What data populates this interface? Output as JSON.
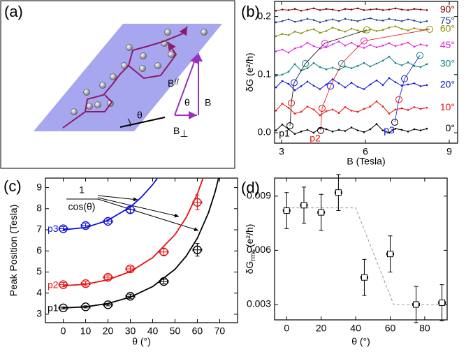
{
  "diagram": {
    "label": "(a)",
    "angle": "θ",
    "b_parallel": "B",
    "parallel_sub": "//",
    "b_total": "B",
    "angle_inner": "θ",
    "b_perp": "B",
    "perp_sub": "⊥"
  },
  "chart_data": [
    {
      "type": "line",
      "label": "(b)",
      "xlabel": "B (Tesla)",
      "ylabel": "δG (e²/h)",
      "xlim": [
        2.75,
        9.3
      ],
      "ylim": [
        -0.018,
        0.226
      ],
      "xticks": [
        3,
        6,
        9
      ],
      "yticks": [
        {
          "value": 0,
          "label": "0.0"
        },
        0.1,
        0.2
      ],
      "x": [
        2.8,
        3.025,
        3.25,
        3.475,
        3.7,
        3.925,
        4.15,
        4.375,
        4.6,
        4.825,
        5.05,
        5.275,
        5.5,
        5.725,
        5.95,
        6.175,
        6.4,
        6.625,
        6.85,
        7.075,
        7.3,
        7.525,
        7.75,
        7.975,
        8.2
      ],
      "series": [
        {
          "name": "0°",
          "color": "#000000",
          "values": [
            0.004,
            0.014,
            0.006,
            -0.002,
            0.002,
            0.005,
            0.0,
            0.008,
            0.006,
            0.002,
            0.005,
            0.003,
            0.009,
            0.004,
            0.001,
            0.006,
            0.015,
            0.004,
            0.0,
            0.007,
            0.005,
            0.002,
            0.006,
            0.004,
            0.007
          ]
        },
        {
          "name": "10°",
          "color": "#e81010",
          "values": [
            0.038,
            0.05,
            0.043,
            0.033,
            0.036,
            0.045,
            0.04,
            0.03,
            0.037,
            0.04,
            0.034,
            0.044,
            0.038,
            0.036,
            0.041,
            0.045,
            0.054,
            0.045,
            0.033,
            0.04,
            0.042,
            0.039,
            0.044,
            0.041,
            0.043
          ]
        },
        {
          "name": "20°",
          "color": "#1010d8",
          "values": [
            0.078,
            0.089,
            0.084,
            0.073,
            0.08,
            0.088,
            0.081,
            0.075,
            0.083,
            0.092,
            0.085,
            0.078,
            0.086,
            0.079,
            0.075,
            0.083,
            0.09,
            0.082,
            0.094,
            0.087,
            0.081,
            0.083,
            0.085,
            0.08,
            0.082
          ]
        },
        {
          "name": "30°",
          "color": "#0a8080",
          "values": [
            0.098,
            0.1,
            0.105,
            0.118,
            0.107,
            0.111,
            0.12,
            0.113,
            0.109,
            0.112,
            0.108,
            0.114,
            0.111,
            0.115,
            0.12,
            0.114,
            0.119,
            0.124,
            0.131,
            0.12,
            0.116,
            0.121,
            0.115,
            0.113,
            0.118
          ]
        },
        {
          "name": "45°",
          "color": "#e020e0",
          "values": [
            0.14,
            0.143,
            0.138,
            0.145,
            0.148,
            0.155,
            0.149,
            0.145,
            0.147,
            0.152,
            0.157,
            0.15,
            0.155,
            0.149,
            0.146,
            0.151,
            0.147,
            0.15,
            0.154,
            0.149,
            0.152,
            0.155,
            0.148,
            0.152,
            0.15
          ]
        },
        {
          "name": "60°",
          "color": "#8a8a00",
          "values": [
            0.166,
            0.17,
            0.168,
            0.174,
            0.171,
            0.176,
            0.178,
            0.172,
            0.175,
            0.181,
            0.177,
            0.174,
            0.179,
            0.176,
            0.173,
            0.178,
            0.175,
            0.177,
            0.181,
            0.183,
            0.179,
            0.176,
            0.18,
            0.177,
            0.178
          ]
        },
        {
          "name": "75°",
          "color": "#1a3f8a",
          "values": [
            0.19,
            0.192,
            0.195,
            0.191,
            0.193,
            0.196,
            0.194,
            0.19,
            0.193,
            0.195,
            0.192,
            0.196,
            0.194,
            0.192,
            0.195,
            0.197,
            0.194,
            0.193,
            0.196,
            0.194,
            0.192,
            0.195,
            0.193,
            0.19,
            0.192
          ]
        },
        {
          "name": "90°",
          "color": "#800000",
          "values": [
            0.21,
            0.212,
            0.211,
            0.213,
            0.21,
            0.212,
            0.214,
            0.211,
            0.213,
            0.212,
            0.21,
            0.213,
            0.212,
            0.214,
            0.211,
            0.212,
            0.213,
            0.211,
            0.212,
            0.214,
            0.212,
            0.211,
            0.213,
            0.212,
            0.211
          ]
        }
      ],
      "peaks": [
        {
          "name": "p1",
          "color": "#000000",
          "x": [
            3.3,
            3.35,
            3.45,
            3.85,
            4.55,
            6.05
          ],
          "values": [
            0.012,
            0.051,
            0.086,
            0.119,
            0.154,
            0.177
          ]
        },
        {
          "name": "p2",
          "color": "#e81010",
          "x": [
            4.4,
            4.45,
            4.75,
            5.15,
            5.95,
            8.3
          ],
          "values": [
            0.004,
            0.042,
            0.08,
            0.119,
            0.158,
            0.178
          ]
        },
        {
          "name": "p3",
          "color": "#1010d8",
          "x": [
            7.05,
            7.2,
            7.4,
            7.95
          ],
          "values": [
            0.018,
            0.057,
            0.093,
            0.133
          ]
        }
      ]
    },
    {
      "type": "scatter",
      "label": "(c)",
      "xlabel": "θ (°)",
      "ylabel": "Peak Position (Tesla)",
      "marker": "circle",
      "xlim": [
        -8,
        78
      ],
      "ylim": [
        2.6,
        9.45
      ],
      "xticks": [
        0,
        10,
        20,
        30,
        40,
        50,
        60,
        70
      ],
      "yticks": [
        3,
        4,
        5,
        6,
        7,
        8,
        9
      ],
      "annotation": {
        "numerator": "1",
        "denominator": "cos(θ)"
      },
      "series": [
        {
          "name": "p1",
          "color": "#000000",
          "x": [
            0,
            10,
            20,
            30,
            45,
            60
          ],
          "values": [
            3.3,
            3.35,
            3.45,
            3.85,
            4.55,
            6.05
          ],
          "xerr": [
            2,
            2,
            2,
            2,
            2,
            2
          ],
          "yerr": [
            0.05,
            0.05,
            0.05,
            0.1,
            0.1,
            0.3
          ],
          "fit_x": [
            0,
            10,
            20,
            30,
            40,
            50,
            55,
            60,
            65,
            68,
            70
          ],
          "fit_values": [
            3.3,
            3.35,
            3.51,
            3.81,
            4.31,
            5.13,
            5.75,
            6.6,
            7.81,
            8.81,
            9.65
          ]
        },
        {
          "name": "p2",
          "color": "#e81010",
          "x": [
            0,
            10,
            20,
            30,
            45,
            60
          ],
          "values": [
            4.4,
            4.45,
            4.75,
            5.15,
            5.95,
            8.3
          ],
          "xerr": [
            2,
            2,
            2,
            2,
            2,
            2
          ],
          "yerr": [
            0.1,
            0.1,
            0.1,
            0.1,
            0.15,
            0.35
          ],
          "fit_x": [
            0,
            10,
            20,
            30,
            40,
            50,
            55,
            60,
            63
          ],
          "fit_values": [
            4.35,
            4.42,
            4.63,
            5.02,
            5.68,
            6.77,
            7.58,
            8.7,
            9.58
          ]
        },
        {
          "name": "p3",
          "color": "#1010d8",
          "x": [
            0,
            10,
            20,
            30
          ],
          "values": [
            7.05,
            7.2,
            7.4,
            7.95
          ],
          "xerr": [
            2,
            2,
            2,
            2
          ],
          "yerr": [
            0.1,
            0.1,
            0.1,
            0.15
          ],
          "fit_x": [
            0,
            10,
            20,
            30,
            35,
            40,
            43
          ],
          "fit_values": [
            7.0,
            7.11,
            7.45,
            8.08,
            8.55,
            9.14,
            9.57
          ]
        }
      ]
    },
    {
      "type": "scatter",
      "label": "(d)",
      "xlabel": "θ (°)",
      "ylabel": "δG",
      "ylabel_sub": "rms",
      "ylabel_unit": "(e²/h)",
      "marker": "square",
      "xlim": [
        -7,
        93
      ],
      "ylim": [
        0.00215,
        0.01
      ],
      "xticks": [
        0,
        20,
        40,
        60,
        80
      ],
      "yticks": [
        0.003,
        0.006,
        0.009
      ],
      "series": [
        {
          "color": "#000000",
          "x": [
            0,
            10,
            20,
            30,
            45,
            60,
            75,
            90
          ],
          "values": [
            0.0082,
            0.0085,
            0.0081,
            0.0092,
            0.0045,
            0.0058,
            0.003,
            0.0031
          ],
          "xerr": [
            2,
            2,
            2,
            2,
            2,
            2,
            2,
            2
          ],
          "yerr": [
            0.001,
            0.001,
            0.001,
            0.001,
            0.001,
            0.001,
            0.001,
            0.001
          ]
        }
      ],
      "guide": {
        "color": "#999999",
        "x": [
          0,
          40,
          62,
          90
        ],
        "values": [
          0.00835,
          0.00835,
          0.003,
          0.003
        ]
      }
    }
  ]
}
